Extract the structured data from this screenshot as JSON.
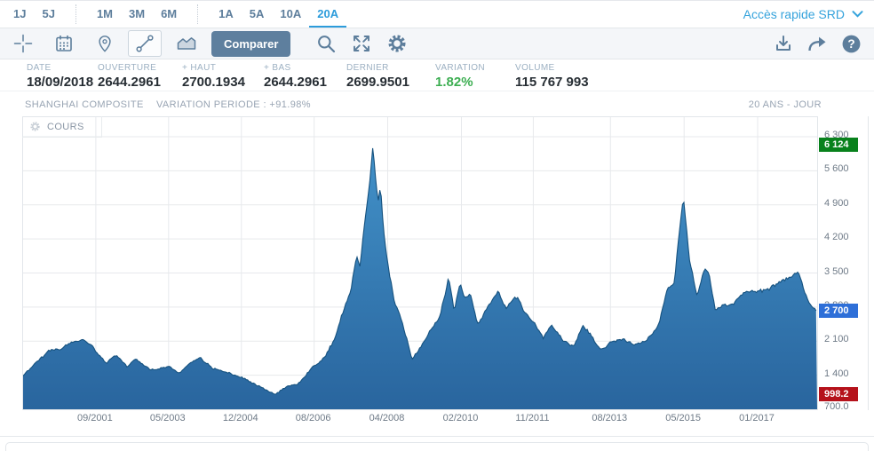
{
  "topbar": {
    "quick_access": "Accès rapide SRD"
  },
  "period_tabs": {
    "groups": [
      [
        "1J",
        "5J"
      ],
      [
        "1M",
        "3M",
        "6M"
      ],
      [
        "1A",
        "5A",
        "10A",
        "20A"
      ]
    ],
    "active": "20A"
  },
  "toolbar": {
    "compare_label": "Comparer",
    "tools": [
      "crosshair",
      "calendar",
      "marker",
      "trendline",
      "area-style"
    ],
    "selected_tool": "trendline",
    "right_tools": [
      "zoom",
      "fullscreen",
      "settings"
    ],
    "far_right_tools": [
      "download",
      "share",
      "help"
    ]
  },
  "quote": {
    "fields": [
      {
        "label": "DATE",
        "value": "18/09/2018",
        "w": 80
      },
      {
        "label": "OUVERTURE",
        "value": "2644.2961",
        "w": 95
      },
      {
        "label": "+ HAUT",
        "value": "2700.1934",
        "w": 92
      },
      {
        "label": "+ BAS",
        "value": "2644.2961",
        "w": 93
      },
      {
        "label": "DERNIER",
        "value": "2699.9501",
        "w": 100
      },
      {
        "label": "VARIATION",
        "value": "1.82%",
        "w": 90,
        "positive": true
      },
      {
        "label": "VOLUME",
        "value": "115 767 993",
        "w": 120
      }
    ]
  },
  "chart": {
    "title": "SHANGHAI COMPOSITE",
    "variation_label": "VARIATION PERIODE : +91.98%",
    "period_label": "20 ANS - JOUR",
    "series_label": "COURS"
  },
  "chart_data": {
    "type": "area",
    "title": "SHANGHAI COMPOSITE",
    "series_name": "COURS",
    "period": "20 ANS - JOUR",
    "ylim": [
      700,
      6300
    ],
    "y_ticks": [
      "6 300",
      "5 600",
      "4 900",
      "4 200",
      "3 500",
      "2 800",
      "2 100",
      "1 400"
    ],
    "y_tick_values": [
      6300,
      5600,
      4900,
      4200,
      3500,
      2800,
      2100,
      1400,
      700
    ],
    "y_bottom_label": "700.0",
    "x_ticks": [
      {
        "label": "09/2001",
        "f": 0.0916
      },
      {
        "label": "05/2003",
        "f": 0.1832
      },
      {
        "label": "12/2004",
        "f": 0.2749
      },
      {
        "label": "08/2006",
        "f": 0.3665
      },
      {
        "label": "04/2008",
        "f": 0.4592
      },
      {
        "label": "02/2010",
        "f": 0.552
      },
      {
        "label": "11/2011",
        "f": 0.6425
      },
      {
        "label": "08/2013",
        "f": 0.7397
      },
      {
        "label": "05/2015",
        "f": 0.8324
      },
      {
        "label": "01/2017",
        "f": 0.9251
      }
    ],
    "badges": {
      "high": {
        "label": "6 124",
        "value": 6124,
        "color": "#08811c"
      },
      "last": {
        "label": "2 700",
        "value": 2700,
        "color": "#2e6fd8"
      },
      "low": {
        "label": "998.2",
        "value": 998.2,
        "color": "#b5121b"
      }
    },
    "colors": {
      "stroke": "#16527f",
      "fill_top": "#4291c8",
      "fill_bottom": "#29659e"
    },
    "points": [
      {
        "d": "01/2000",
        "f": 0.0,
        "v": 1390
      },
      {
        "d": "03/2000",
        "f": 0.01,
        "v": 1560
      },
      {
        "d": "07/2000",
        "f": 0.022,
        "v": 1780
      },
      {
        "d": "10/2000",
        "f": 0.035,
        "v": 1910
      },
      {
        "d": "01/2001",
        "f": 0.05,
        "v": 1970
      },
      {
        "d": "04/2001",
        "f": 0.062,
        "v": 2060
      },
      {
        "d": "06/2001",
        "f": 0.075,
        "v": 2140
      },
      {
        "d": "08/2001",
        "f": 0.085,
        "v": 2040
      },
      {
        "d": "09/2001",
        "f": 0.092,
        "v": 1900
      },
      {
        "d": "10/2001",
        "f": 0.105,
        "v": 1670
      },
      {
        "d": "12/2001",
        "f": 0.118,
        "v": 1790
      },
      {
        "d": "01/2002",
        "f": 0.13,
        "v": 1590
      },
      {
        "d": "06/2002",
        "f": 0.142,
        "v": 1720
      },
      {
        "d": "09/2002",
        "f": 0.155,
        "v": 1560
      },
      {
        "d": "01/2003",
        "f": 0.168,
        "v": 1510
      },
      {
        "d": "05/2003",
        "f": 0.183,
        "v": 1580
      },
      {
        "d": "11/2003",
        "f": 0.196,
        "v": 1440
      },
      {
        "d": "02/2004",
        "f": 0.21,
        "v": 1660
      },
      {
        "d": "04/2004",
        "f": 0.222,
        "v": 1770
      },
      {
        "d": "07/2004",
        "f": 0.24,
        "v": 1520
      },
      {
        "d": "10/2004",
        "f": 0.26,
        "v": 1420
      },
      {
        "d": "12/2004",
        "f": 0.275,
        "v": 1320
      },
      {
        "d": "03/2005",
        "f": 0.29,
        "v": 1240
      },
      {
        "d": "05/2005",
        "f": 0.305,
        "v": 1110
      },
      {
        "d": "06/2005",
        "f": 0.317,
        "v": 1000
      },
      {
        "d": "09/2005",
        "f": 0.33,
        "v": 1130
      },
      {
        "d": "12/2005",
        "f": 0.345,
        "v": 1200
      },
      {
        "d": "05/2006",
        "f": 0.36,
        "v": 1480
      },
      {
        "d": "08/2006",
        "f": 0.3665,
        "v": 1600
      },
      {
        "d": "10/2006",
        "f": 0.38,
        "v": 1790
      },
      {
        "d": "12/2006",
        "f": 0.392,
        "v": 2150
      },
      {
        "d": "01/2007",
        "f": 0.402,
        "v": 2700
      },
      {
        "d": "02/2007",
        "f": 0.408,
        "v": 2950
      },
      {
        "d": "03/2007",
        "f": 0.413,
        "v": 3200
      },
      {
        "d": "05/2007",
        "f": 0.42,
        "v": 3900
      },
      {
        "d": "06/2007",
        "f": 0.424,
        "v": 3650
      },
      {
        "d": "08/2007",
        "f": 0.43,
        "v": 4550
      },
      {
        "d": "09/2007",
        "f": 0.436,
        "v": 5300
      },
      {
        "d": "10/2007",
        "f": 0.4405,
        "v": 6124
      },
      {
        "d": "11/2007",
        "f": 0.444,
        "v": 5450
      },
      {
        "d": "12/2007",
        "f": 0.447,
        "v": 4950
      },
      {
        "d": "01/2008",
        "f": 0.45,
        "v": 5300
      },
      {
        "d": "03/2008",
        "f": 0.454,
        "v": 4350
      },
      {
        "d": "04/2008",
        "f": 0.459,
        "v": 3750
      },
      {
        "d": "05/2008",
        "f": 0.462,
        "v": 3450
      },
      {
        "d": "06/2008",
        "f": 0.468,
        "v": 2900
      },
      {
        "d": "08/2008",
        "f": 0.475,
        "v": 2600
      },
      {
        "d": "09/2008",
        "f": 0.482,
        "v": 2200
      },
      {
        "d": "10/2008",
        "f": 0.49,
        "v": 1730
      },
      {
        "d": "12/2008",
        "f": 0.5,
        "v": 1950
      },
      {
        "d": "02/2009",
        "f": 0.512,
        "v": 2300
      },
      {
        "d": "05/2009",
        "f": 0.525,
        "v": 2650
      },
      {
        "d": "08/2009",
        "f": 0.536,
        "v": 3430
      },
      {
        "d": "09/2009",
        "f": 0.543,
        "v": 2700
      },
      {
        "d": "11/2009",
        "f": 0.55,
        "v": 3250
      },
      {
        "d": "02/2010",
        "f": 0.556,
        "v": 2980
      },
      {
        "d": "04/2010",
        "f": 0.563,
        "v": 3100
      },
      {
        "d": "07/2010",
        "f": 0.572,
        "v": 2430
      },
      {
        "d": "11/2010",
        "f": 0.598,
        "v": 3140
      },
      {
        "d": "01/2011",
        "f": 0.608,
        "v": 2800
      },
      {
        "d": "04/2011",
        "f": 0.622,
        "v": 3020
      },
      {
        "d": "06/2011",
        "f": 0.63,
        "v": 2720
      },
      {
        "d": "11/2011",
        "f": 0.6425,
        "v": 2480
      },
      {
        "d": "01/2012",
        "f": 0.655,
        "v": 2180
      },
      {
        "d": "03/2012",
        "f": 0.665,
        "v": 2430
      },
      {
        "d": "07/2012",
        "f": 0.68,
        "v": 2150
      },
      {
        "d": "12/2012",
        "f": 0.693,
        "v": 1990
      },
      {
        "d": "02/2013",
        "f": 0.705,
        "v": 2420
      },
      {
        "d": "04/2013",
        "f": 0.716,
        "v": 2200
      },
      {
        "d": "06/2013",
        "f": 0.728,
        "v": 1900
      },
      {
        "d": "08/2013",
        "f": 0.74,
        "v": 2090
      },
      {
        "d": "12/2013",
        "f": 0.755,
        "v": 2150
      },
      {
        "d": "03/2014",
        "f": 0.77,
        "v": 2020
      },
      {
        "d": "07/2014",
        "f": 0.785,
        "v": 2120
      },
      {
        "d": "10/2014",
        "f": 0.8,
        "v": 2420
      },
      {
        "d": "12/2014",
        "f": 0.812,
        "v": 3200
      },
      {
        "d": "02/2015",
        "f": 0.82,
        "v": 3280
      },
      {
        "d": "04/2015",
        "f": 0.827,
        "v": 4450
      },
      {
        "d": "06/2015",
        "f": 0.8315,
        "v": 5100
      },
      {
        "d": "07/2015",
        "f": 0.839,
        "v": 3850
      },
      {
        "d": "08/2015",
        "f": 0.849,
        "v": 3030
      },
      {
        "d": "11/2015",
        "f": 0.858,
        "v": 3580
      },
      {
        "d": "12/2015",
        "f": 0.864,
        "v": 3520
      },
      {
        "d": "01/2016",
        "f": 0.872,
        "v": 2760
      },
      {
        "d": "03/2016",
        "f": 0.882,
        "v": 2880
      },
      {
        "d": "06/2016",
        "f": 0.895,
        "v": 2910
      },
      {
        "d": "08/2016",
        "f": 0.908,
        "v": 3060
      },
      {
        "d": "01/2017",
        "f": 0.9251,
        "v": 3120
      },
      {
        "d": "04/2017",
        "f": 0.94,
        "v": 3160
      },
      {
        "d": "09/2017",
        "f": 0.956,
        "v": 3360
      },
      {
        "d": "11/2017",
        "f": 0.968,
        "v": 3420
      },
      {
        "d": "01/2018",
        "f": 0.976,
        "v": 3550
      },
      {
        "d": "04/2018",
        "f": 0.984,
        "v": 3130
      },
      {
        "d": "07/2018",
        "f": 0.992,
        "v": 2850
      },
      {
        "d": "09/2018",
        "f": 1.0,
        "v": 2700
      }
    ]
  }
}
